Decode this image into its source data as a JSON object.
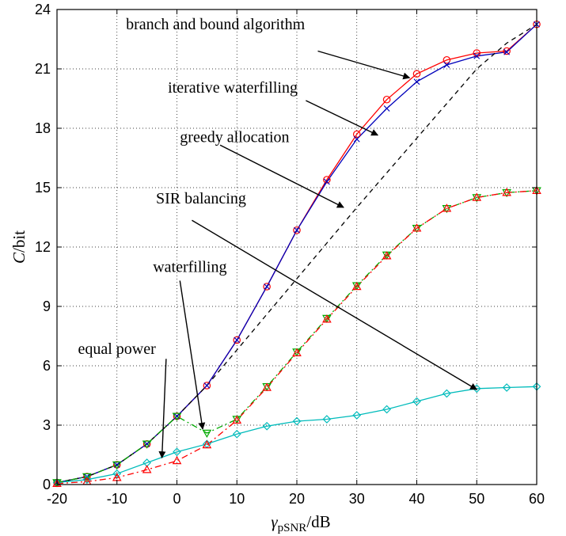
{
  "chart_data": {
    "type": "line",
    "xlabel": "γ_pSNR/dB",
    "xlabel_main": "γ",
    "xlabel_sub": "pSNR",
    "xlabel_unit": "/dB",
    "ylabel": "C/bit",
    "ylabel_main": "C",
    "ylabel_unit": "/bit",
    "xlim": [
      -20,
      60
    ],
    "ylim": [
      0,
      24
    ],
    "xticks": [
      -20,
      -10,
      0,
      10,
      20,
      30,
      40,
      50,
      60
    ],
    "yticks": [
      0,
      3,
      6,
      9,
      12,
      15,
      18,
      21,
      24
    ],
    "grid": true,
    "x": [
      -20,
      -15,
      -10,
      -5,
      0,
      5,
      10,
      15,
      20,
      25,
      30,
      35,
      40,
      45,
      50,
      55,
      60
    ],
    "series": [
      {
        "key": "branch_and_bound",
        "color": "#ff0000",
        "dash": "solid",
        "marker": "circle",
        "values": [
          0.1,
          0.4,
          1.0,
          2.05,
          3.45,
          5.0,
          7.3,
          10.0,
          12.85,
          15.4,
          17.7,
          19.45,
          20.75,
          21.45,
          21.8,
          21.9,
          23.25
        ]
      },
      {
        "key": "iterative_waterfilling",
        "color": "#0000bb",
        "dash": "solid",
        "marker": "x",
        "values": [
          0.1,
          0.4,
          1.0,
          2.05,
          3.45,
          5.0,
          7.3,
          10.0,
          12.85,
          15.3,
          17.45,
          19.0,
          20.35,
          21.2,
          21.65,
          21.85,
          23.25
        ]
      },
      {
        "key": "greedy_allocation",
        "color": "#000000",
        "dash": "6,5",
        "marker": "none",
        "values": [
          0.1,
          0.4,
          1.0,
          2.05,
          3.45,
          5.0,
          6.8,
          8.6,
          10.4,
          12.2,
          14.0,
          15.75,
          17.5,
          19.25,
          21.0,
          22.3,
          23.25
        ]
      },
      {
        "key": "sir_balancing",
        "color": "#00bbbb",
        "dash": "solid",
        "marker": "diamond",
        "values": [
          0.1,
          0.25,
          0.55,
          1.1,
          1.65,
          2.05,
          2.55,
          2.95,
          3.2,
          3.3,
          3.5,
          3.8,
          4.2,
          4.6,
          4.85,
          4.9,
          4.95
        ]
      },
      {
        "key": "waterfilling",
        "color": "#00aa00",
        "dash": "8,4,2,4",
        "marker": "triangle-down",
        "values": [
          0.1,
          0.4,
          1.0,
          2.05,
          3.45,
          2.6,
          3.3,
          4.95,
          6.7,
          8.4,
          10.05,
          11.6,
          12.95,
          13.95,
          14.5,
          14.75,
          14.85
        ]
      },
      {
        "key": "equal_power",
        "color": "#ff0000",
        "dash": "8,4,2,4",
        "marker": "triangle-up",
        "values": [
          0.05,
          0.15,
          0.35,
          0.75,
          1.2,
          2.0,
          3.25,
          4.9,
          6.65,
          8.35,
          10.0,
          11.55,
          12.95,
          13.95,
          14.5,
          14.75,
          14.85
        ]
      }
    ],
    "annotations": [
      {
        "key": "bb",
        "text": "branch and bound algorithm",
        "text_at": [
          -8.5,
          23.0
        ],
        "arrow_from": [
          23.5,
          21.9
        ],
        "arrow_to": [
          38.8,
          20.55
        ]
      },
      {
        "key": "iw",
        "text": "iterative waterfilling",
        "text_at": [
          -1.5,
          19.8
        ],
        "arrow_from": [
          21.5,
          19.4
        ],
        "arrow_to": [
          33.5,
          17.65
        ]
      },
      {
        "key": "ga",
        "text": "greedy allocation",
        "text_at": [
          0.5,
          17.3
        ],
        "arrow_from": [
          7.2,
          17.15
        ],
        "arrow_to": [
          27.8,
          14.0
        ]
      },
      {
        "key": "sir",
        "text": "SIR balancing",
        "text_at": [
          -3.5,
          14.2
        ],
        "arrow_from": [
          2.5,
          13.35
        ],
        "arrow_to": [
          50.0,
          4.8
        ]
      },
      {
        "key": "wf",
        "text": "waterfilling",
        "text_at": [
          -4.0,
          10.75
        ],
        "arrow_from": [
          0.5,
          10.3
        ],
        "arrow_to": [
          4.3,
          2.8
        ]
      },
      {
        "key": "ep",
        "text": "equal power",
        "text_at": [
          -16.5,
          6.6
        ],
        "arrow_from": [
          -1.8,
          6.35
        ],
        "arrow_to": [
          -2.5,
          1.35
        ]
      }
    ]
  }
}
